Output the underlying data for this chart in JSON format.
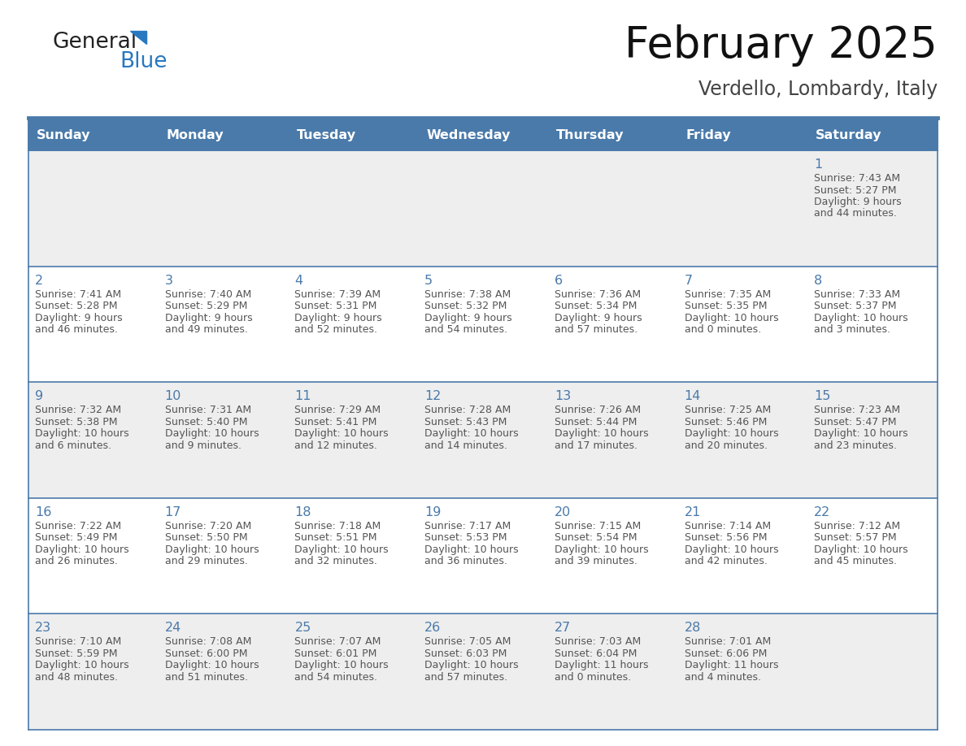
{
  "title": "February 2025",
  "subtitle": "Verdello, Lombardy, Italy",
  "header_bg_color": "#4a7aaa",
  "header_text_color": "#ffffff",
  "header_days": [
    "Sunday",
    "Monday",
    "Tuesday",
    "Wednesday",
    "Thursday",
    "Friday",
    "Saturday"
  ],
  "odd_row_bg": "#eeeeee",
  "even_row_bg": "#ffffff",
  "border_color": "#4a7aaa",
  "day_number_color": "#4a7aaa",
  "text_color": "#555555",
  "logo_general_color": "#222222",
  "logo_blue_color": "#2878c0",
  "title_color": "#111111",
  "subtitle_color": "#444444",
  "weeks": [
    [
      {
        "day": "",
        "sunrise": "",
        "sunset": "",
        "daylight": ""
      },
      {
        "day": "",
        "sunrise": "",
        "sunset": "",
        "daylight": ""
      },
      {
        "day": "",
        "sunrise": "",
        "sunset": "",
        "daylight": ""
      },
      {
        "day": "",
        "sunrise": "",
        "sunset": "",
        "daylight": ""
      },
      {
        "day": "",
        "sunrise": "",
        "sunset": "",
        "daylight": ""
      },
      {
        "day": "",
        "sunrise": "",
        "sunset": "",
        "daylight": ""
      },
      {
        "day": "1",
        "sunrise": "7:43 AM",
        "sunset": "5:27 PM",
        "daylight": "9 hours\nand 44 minutes."
      }
    ],
    [
      {
        "day": "2",
        "sunrise": "7:41 AM",
        "sunset": "5:28 PM",
        "daylight": "9 hours\nand 46 minutes."
      },
      {
        "day": "3",
        "sunrise": "7:40 AM",
        "sunset": "5:29 PM",
        "daylight": "9 hours\nand 49 minutes."
      },
      {
        "day": "4",
        "sunrise": "7:39 AM",
        "sunset": "5:31 PM",
        "daylight": "9 hours\nand 52 minutes."
      },
      {
        "day": "5",
        "sunrise": "7:38 AM",
        "sunset": "5:32 PM",
        "daylight": "9 hours\nand 54 minutes."
      },
      {
        "day": "6",
        "sunrise": "7:36 AM",
        "sunset": "5:34 PM",
        "daylight": "9 hours\nand 57 minutes."
      },
      {
        "day": "7",
        "sunrise": "7:35 AM",
        "sunset": "5:35 PM",
        "daylight": "10 hours\nand 0 minutes."
      },
      {
        "day": "8",
        "sunrise": "7:33 AM",
        "sunset": "5:37 PM",
        "daylight": "10 hours\nand 3 minutes."
      }
    ],
    [
      {
        "day": "9",
        "sunrise": "7:32 AM",
        "sunset": "5:38 PM",
        "daylight": "10 hours\nand 6 minutes."
      },
      {
        "day": "10",
        "sunrise": "7:31 AM",
        "sunset": "5:40 PM",
        "daylight": "10 hours\nand 9 minutes."
      },
      {
        "day": "11",
        "sunrise": "7:29 AM",
        "sunset": "5:41 PM",
        "daylight": "10 hours\nand 12 minutes."
      },
      {
        "day": "12",
        "sunrise": "7:28 AM",
        "sunset": "5:43 PM",
        "daylight": "10 hours\nand 14 minutes."
      },
      {
        "day": "13",
        "sunrise": "7:26 AM",
        "sunset": "5:44 PM",
        "daylight": "10 hours\nand 17 minutes."
      },
      {
        "day": "14",
        "sunrise": "7:25 AM",
        "sunset": "5:46 PM",
        "daylight": "10 hours\nand 20 minutes."
      },
      {
        "day": "15",
        "sunrise": "7:23 AM",
        "sunset": "5:47 PM",
        "daylight": "10 hours\nand 23 minutes."
      }
    ],
    [
      {
        "day": "16",
        "sunrise": "7:22 AM",
        "sunset": "5:49 PM",
        "daylight": "10 hours\nand 26 minutes."
      },
      {
        "day": "17",
        "sunrise": "7:20 AM",
        "sunset": "5:50 PM",
        "daylight": "10 hours\nand 29 minutes."
      },
      {
        "day": "18",
        "sunrise": "7:18 AM",
        "sunset": "5:51 PM",
        "daylight": "10 hours\nand 32 minutes."
      },
      {
        "day": "19",
        "sunrise": "7:17 AM",
        "sunset": "5:53 PM",
        "daylight": "10 hours\nand 36 minutes."
      },
      {
        "day": "20",
        "sunrise": "7:15 AM",
        "sunset": "5:54 PM",
        "daylight": "10 hours\nand 39 minutes."
      },
      {
        "day": "21",
        "sunrise": "7:14 AM",
        "sunset": "5:56 PM",
        "daylight": "10 hours\nand 42 minutes."
      },
      {
        "day": "22",
        "sunrise": "7:12 AM",
        "sunset": "5:57 PM",
        "daylight": "10 hours\nand 45 minutes."
      }
    ],
    [
      {
        "day": "23",
        "sunrise": "7:10 AM",
        "sunset": "5:59 PM",
        "daylight": "10 hours\nand 48 minutes."
      },
      {
        "day": "24",
        "sunrise": "7:08 AM",
        "sunset": "6:00 PM",
        "daylight": "10 hours\nand 51 minutes."
      },
      {
        "day": "25",
        "sunrise": "7:07 AM",
        "sunset": "6:01 PM",
        "daylight": "10 hours\nand 54 minutes."
      },
      {
        "day": "26",
        "sunrise": "7:05 AM",
        "sunset": "6:03 PM",
        "daylight": "10 hours\nand 57 minutes."
      },
      {
        "day": "27",
        "sunrise": "7:03 AM",
        "sunset": "6:04 PM",
        "daylight": "11 hours\nand 0 minutes."
      },
      {
        "day": "28",
        "sunrise": "7:01 AM",
        "sunset": "6:06 PM",
        "daylight": "11 hours\nand 4 minutes."
      },
      {
        "day": "",
        "sunrise": "",
        "sunset": "",
        "daylight": ""
      }
    ]
  ]
}
